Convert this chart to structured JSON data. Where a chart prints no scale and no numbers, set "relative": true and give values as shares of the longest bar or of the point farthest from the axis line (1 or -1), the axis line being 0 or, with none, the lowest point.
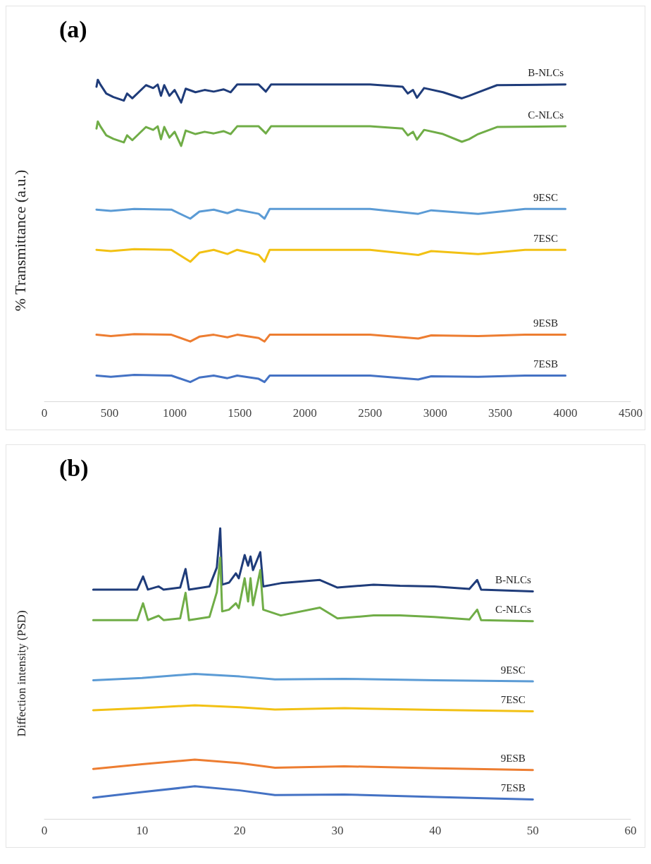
{
  "chart_data": [
    {
      "type": "line",
      "title": "(a)",
      "ylabel": "% Transmittance (a.u.)",
      "relative": true,
      "xlim": [
        0,
        4500
      ],
      "xticks": [
        0,
        500,
        1000,
        1500,
        2000,
        2500,
        3000,
        3500,
        4000,
        4500
      ],
      "tick_labels": "x",
      "grid": false,
      "legend": false,
      "marker": "none",
      "line_style": "solid",
      "series": [
        {
          "name": "B-NLCs",
          "color": "#1f3c7a",
          "x": [
            400,
            410,
            430,
            475,
            530,
            610,
            635,
            675,
            780,
            835,
            870,
            895,
            920,
            960,
            1000,
            1050,
            1085,
            1160,
            1230,
            1300,
            1375,
            1430,
            1480,
            1645,
            1700,
            1740,
            2500,
            2750,
            2790,
            2830,
            2860,
            2915,
            3060,
            3205,
            3260,
            3330,
            3475,
            4000
          ],
          "values": [
            0.978,
            1.0,
            0.985,
            0.957,
            0.946,
            0.935,
            0.957,
            0.942,
            0.983,
            0.974,
            0.985,
            0.95,
            0.983,
            0.95,
            0.968,
            0.929,
            0.972,
            0.961,
            0.968,
            0.963,
            0.97,
            0.961,
            0.985,
            0.985,
            0.963,
            0.985,
            0.985,
            0.978,
            0.957,
            0.968,
            0.944,
            0.974,
            0.961,
            0.942,
            0.95,
            0.961,
            0.983,
            0.985
          ]
        },
        {
          "name": "C-NLCs",
          "color": "#70ad47",
          "x": [
            400,
            410,
            430,
            475,
            530,
            610,
            635,
            675,
            780,
            835,
            870,
            895,
            920,
            960,
            1000,
            1050,
            1085,
            1160,
            1230,
            1300,
            1375,
            1430,
            1480,
            1645,
            1700,
            1740,
            2500,
            2750,
            2790,
            2830,
            2860,
            2915,
            3060,
            3205,
            3260,
            3330,
            3475,
            4000
          ],
          "values": [
            0.848,
            0.87,
            0.855,
            0.827,
            0.816,
            0.805,
            0.827,
            0.812,
            0.853,
            0.844,
            0.855,
            0.815,
            0.853,
            0.82,
            0.838,
            0.794,
            0.842,
            0.831,
            0.838,
            0.833,
            0.84,
            0.831,
            0.855,
            0.855,
            0.833,
            0.855,
            0.855,
            0.848,
            0.827,
            0.838,
            0.814,
            0.844,
            0.831,
            0.807,
            0.815,
            0.831,
            0.853,
            0.855
          ]
        },
        {
          "name": "9ESC",
          "color": "#5b9bd5",
          "x": [
            400,
            510,
            690,
            975,
            1120,
            1190,
            1300,
            1405,
            1480,
            1645,
            1690,
            1730,
            2500,
            2870,
            2970,
            3330,
            3690,
            4000
          ],
          "values": [
            0.596,
            0.592,
            0.598,
            0.596,
            0.568,
            0.59,
            0.596,
            0.585,
            0.596,
            0.583,
            0.568,
            0.598,
            0.598,
            0.583,
            0.594,
            0.583,
            0.598,
            0.598
          ]
        },
        {
          "name": "7ESC",
          "color": "#f2c114",
          "x": [
            400,
            510,
            690,
            975,
            1120,
            1190,
            1300,
            1405,
            1480,
            1645,
            1690,
            1730,
            2500,
            2870,
            2970,
            3330,
            3690,
            4000
          ],
          "values": [
            0.471,
            0.467,
            0.473,
            0.471,
            0.434,
            0.462,
            0.471,
            0.458,
            0.471,
            0.455,
            0.434,
            0.471,
            0.471,
            0.455,
            0.467,
            0.458,
            0.471,
            0.471
          ]
        },
        {
          "name": "9ESB",
          "color": "#ed7d31",
          "x": [
            400,
            510,
            690,
            975,
            1120,
            1190,
            1300,
            1405,
            1480,
            1645,
            1690,
            1730,
            2500,
            2870,
            2970,
            3330,
            3690,
            4000
          ],
          "values": [
            0.207,
            0.203,
            0.209,
            0.207,
            0.186,
            0.201,
            0.207,
            0.199,
            0.207,
            0.197,
            0.186,
            0.207,
            0.207,
            0.195,
            0.205,
            0.203,
            0.207,
            0.207
          ]
        },
        {
          "name": "7ESB",
          "color": "#4472c4",
          "x": [
            400,
            510,
            690,
            975,
            1120,
            1190,
            1300,
            1405,
            1480,
            1645,
            1690,
            1730,
            2500,
            2870,
            2970,
            3330,
            3690,
            4000
          ],
          "values": [
            0.08,
            0.076,
            0.082,
            0.08,
            0.06,
            0.074,
            0.08,
            0.072,
            0.08,
            0.07,
            0.06,
            0.08,
            0.08,
            0.068,
            0.078,
            0.076,
            0.08,
            0.08
          ]
        }
      ]
    },
    {
      "type": "line",
      "title": "(b)",
      "ylabel": "Diffection intensity (PSD)",
      "relative": true,
      "xlim": [
        0,
        60
      ],
      "xticks": [
        0,
        10,
        20,
        30,
        40,
        50,
        60
      ],
      "tick_labels": "x",
      "grid": false,
      "legend": false,
      "marker": "none",
      "line_style": "solid",
      "series": [
        {
          "name": "B-NLCs",
          "color": "#1f3c7a",
          "x": [
            5,
            9.5,
            10.1,
            10.6,
            11.7,
            12.2,
            13.9,
            14.45,
            14.8,
            16.9,
            17.65,
            18.0,
            18.2,
            18.9,
            19.6,
            19.9,
            20.5,
            20.85,
            21.1,
            21.35,
            22.1,
            22.4,
            24.2,
            28.2,
            30,
            33.7,
            36.4,
            39.9,
            43.5,
            44.3,
            44.7,
            50
          ],
          "values": [
            0.789,
            0.789,
            0.834,
            0.789,
            0.8,
            0.789,
            0.796,
            0.86,
            0.789,
            0.8,
            0.865,
            1.0,
            0.806,
            0.813,
            0.845,
            0.828,
            0.908,
            0.871,
            0.903,
            0.856,
            0.918,
            0.8,
            0.811,
            0.822,
            0.796,
            0.806,
            0.802,
            0.8,
            0.791,
            0.822,
            0.789,
            0.783
          ]
        },
        {
          "name": "C-NLCs",
          "color": "#70ad47",
          "x": [
            5,
            9.5,
            10.1,
            10.6,
            11.7,
            12.2,
            13.9,
            14.45,
            14.8,
            16.9,
            17.65,
            18.0,
            18.2,
            18.9,
            19.6,
            19.9,
            20.5,
            20.85,
            21.1,
            21.35,
            22.1,
            22.4,
            24.2,
            28.2,
            30,
            33.7,
            36.4,
            39.9,
            43.5,
            44.3,
            44.7,
            50
          ],
          "values": [
            0.684,
            0.684,
            0.742,
            0.684,
            0.699,
            0.684,
            0.69,
            0.778,
            0.684,
            0.695,
            0.78,
            0.899,
            0.714,
            0.72,
            0.742,
            0.725,
            0.828,
            0.748,
            0.828,
            0.735,
            0.856,
            0.72,
            0.7,
            0.727,
            0.69,
            0.7,
            0.7,
            0.695,
            0.686,
            0.72,
            0.684,
            0.68
          ]
        },
        {
          "name": "9ESC",
          "color": "#5b9bd5",
          "x": [
            5,
            10,
            15.4,
            20,
            23.6,
            30.7,
            40,
            50
          ],
          "values": [
            0.477,
            0.485,
            0.499,
            0.49,
            0.48,
            0.482,
            0.477,
            0.473
          ]
        },
        {
          "name": "7ESC",
          "color": "#f2c114",
          "x": [
            5,
            10,
            15.4,
            20,
            23.6,
            30.7,
            40,
            50
          ],
          "values": [
            0.374,
            0.381,
            0.391,
            0.384,
            0.376,
            0.381,
            0.375,
            0.37
          ]
        },
        {
          "name": "9ESB",
          "color": "#ed7d31",
          "x": [
            5,
            10,
            15.4,
            20,
            23.6,
            30.7,
            40,
            50
          ],
          "values": [
            0.172,
            0.188,
            0.204,
            0.192,
            0.176,
            0.181,
            0.174,
            0.168
          ]
        },
        {
          "name": "7ESB",
          "color": "#4472c4",
          "x": [
            5,
            10,
            15.4,
            20,
            23.6,
            30.7,
            40,
            50
          ],
          "values": [
            0.073,
            0.092,
            0.112,
            0.098,
            0.082,
            0.084,
            0.075,
            0.067
          ]
        }
      ]
    }
  ]
}
